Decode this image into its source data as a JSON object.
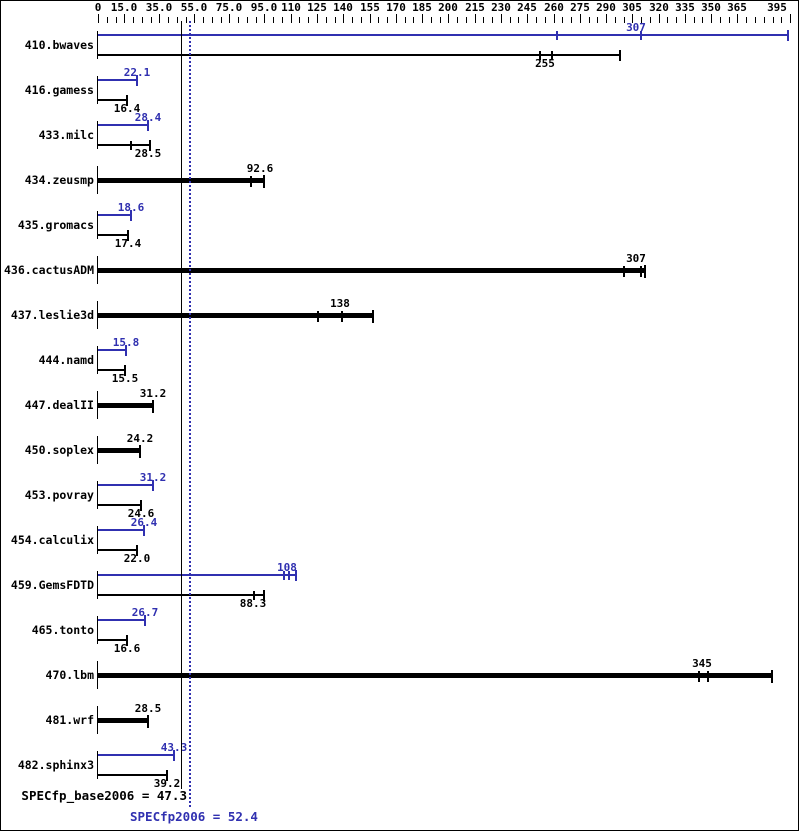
{
  "chart_data": {
    "type": "bar",
    "orientation": "horizontal",
    "title": "",
    "xlabel": "",
    "ylabel": "",
    "legend": "none",
    "colors": {
      "peak": "#3030b0",
      "base": "#000000"
    },
    "axis": {
      "min": 0,
      "max": 395,
      "minor_tick_step": 5,
      "labeled_ticks": [
        {
          "value": 0,
          "label": "0"
        },
        {
          "value": 15,
          "label": "15.0"
        },
        {
          "value": 35,
          "label": "35.0"
        },
        {
          "value": 55,
          "label": "55.0"
        },
        {
          "value": 75,
          "label": "75.0"
        },
        {
          "value": 95,
          "label": "95.0"
        },
        {
          "value": 110,
          "label": "110"
        },
        {
          "value": 125,
          "label": "125"
        },
        {
          "value": 140,
          "label": "140"
        },
        {
          "value": 155,
          "label": "155"
        },
        {
          "value": 170,
          "label": "170"
        },
        {
          "value": 185,
          "label": "185"
        },
        {
          "value": 200,
          "label": "200"
        },
        {
          "value": 215,
          "label": "215"
        },
        {
          "value": 230,
          "label": "230"
        },
        {
          "value": 245,
          "label": "245"
        },
        {
          "value": 260,
          "label": "260"
        },
        {
          "value": 275,
          "label": "275"
        },
        {
          "value": 290,
          "label": "290"
        },
        {
          "value": 305,
          "label": "305"
        },
        {
          "value": 320,
          "label": "320"
        },
        {
          "value": 335,
          "label": "335"
        },
        {
          "value": 350,
          "label": "350"
        },
        {
          "value": 365,
          "label": "365"
        },
        {
          "value": 395,
          "label": "395"
        }
      ]
    },
    "rows": [
      {
        "name": "410.bwaves",
        "peak": {
          "value": 307,
          "label": "307",
          "run_ticks": [
            262,
            310
          ],
          "bar_end": 394
        },
        "base": {
          "value": 255,
          "label": "255",
          "run_ticks": [
            252,
            259
          ],
          "bar_end": 298
        }
      },
      {
        "name": "416.gamess",
        "peak": {
          "value": 22.1,
          "label": "22.1",
          "run_ticks": [],
          "bar_end": 22.1
        },
        "base": {
          "value": 16.4,
          "label": "16.4",
          "run_ticks": [],
          "bar_end": 16.4
        }
      },
      {
        "name": "433.milc",
        "peak": {
          "value": 28.4,
          "label": "28.4",
          "run_ticks": [],
          "bar_end": 28.4
        },
        "base": {
          "value": 28.5,
          "label": "28.5",
          "run_ticks": [
            18.8
          ],
          "bar_end": 29.7
        }
      },
      {
        "name": "434.zeusmp",
        "single": {
          "value": 92.6,
          "label": "92.6",
          "run_ticks": [
            87.3
          ],
          "bar_end": 94.7
        }
      },
      {
        "name": "435.gromacs",
        "peak": {
          "value": 18.6,
          "label": "18.6",
          "run_ticks": [],
          "bar_end": 18.6
        },
        "base": {
          "value": 17.4,
          "label": "17.4",
          "run_ticks": [],
          "bar_end": 17.4
        }
      },
      {
        "name": "436.cactusADM",
        "single": {
          "value": 307,
          "label": "307",
          "run_ticks": [
            300,
            310
          ],
          "bar_end": 312
        }
      },
      {
        "name": "437.leslie3d",
        "single": {
          "value": 138,
          "label": "138",
          "run_ticks": [
            125.6,
            139.3
          ],
          "bar_end": 157
        }
      },
      {
        "name": "444.namd",
        "peak": {
          "value": 15.8,
          "label": "15.8",
          "run_ticks": [],
          "bar_end": 15.8
        },
        "base": {
          "value": 15.5,
          "label": "15.5",
          "run_ticks": [],
          "bar_end": 15.5
        }
      },
      {
        "name": "447.dealII",
        "single": {
          "value": 31.2,
          "label": "31.2",
          "run_ticks": [],
          "bar_end": 31.2
        }
      },
      {
        "name": "450.soplex",
        "single": {
          "value": 24.2,
          "label": "24.2",
          "run_ticks": [],
          "bar_end": 24.2
        }
      },
      {
        "name": "453.povray",
        "peak": {
          "value": 31.2,
          "label": "31.2",
          "run_ticks": [],
          "bar_end": 31.2
        },
        "base": {
          "value": 24.6,
          "label": "24.6",
          "run_ticks": [],
          "bar_end": 24.6
        }
      },
      {
        "name": "454.calculix",
        "peak": {
          "value": 26.4,
          "label": "26.4",
          "run_ticks": [],
          "bar_end": 26.4
        },
        "base": {
          "value": 22.0,
          "label": "22.0",
          "run_ticks": [],
          "bar_end": 22.0
        }
      },
      {
        "name": "459.GemsFDTD",
        "peak": {
          "value": 108,
          "label": "108",
          "run_ticks": [
            106,
            109
          ],
          "bar_end": 113
        },
        "base": {
          "value": 88.3,
          "label": "88.3",
          "run_ticks": [
            89
          ],
          "bar_end": 94.7
        }
      },
      {
        "name": "465.tonto",
        "peak": {
          "value": 26.7,
          "label": "26.7",
          "run_ticks": [],
          "bar_end": 26.7
        },
        "base": {
          "value": 16.6,
          "label": "16.6",
          "run_ticks": [],
          "bar_end": 16.6
        }
      },
      {
        "name": "470.lbm",
        "single": {
          "value": 345,
          "label": "345",
          "run_ticks": [
            343,
            348
          ],
          "bar_end": 384.7
        }
      },
      {
        "name": "481.wrf",
        "single": {
          "value": 28.5,
          "label": "28.5",
          "run_ticks": [],
          "bar_end": 28.5
        }
      },
      {
        "name": "482.sphinx3",
        "peak": {
          "value": 43.3,
          "label": "43.3",
          "run_ticks": [],
          "bar_end": 43.3
        },
        "base": {
          "value": 39.2,
          "label": "39.2",
          "run_ticks": [],
          "bar_end": 39.2
        }
      }
    ],
    "means": {
      "base": {
        "value": 47.3,
        "label": "SPECfp_base2006 = 47.3"
      },
      "peak": {
        "value": 52.4,
        "label": "SPECfp2006 = 52.4"
      }
    }
  }
}
